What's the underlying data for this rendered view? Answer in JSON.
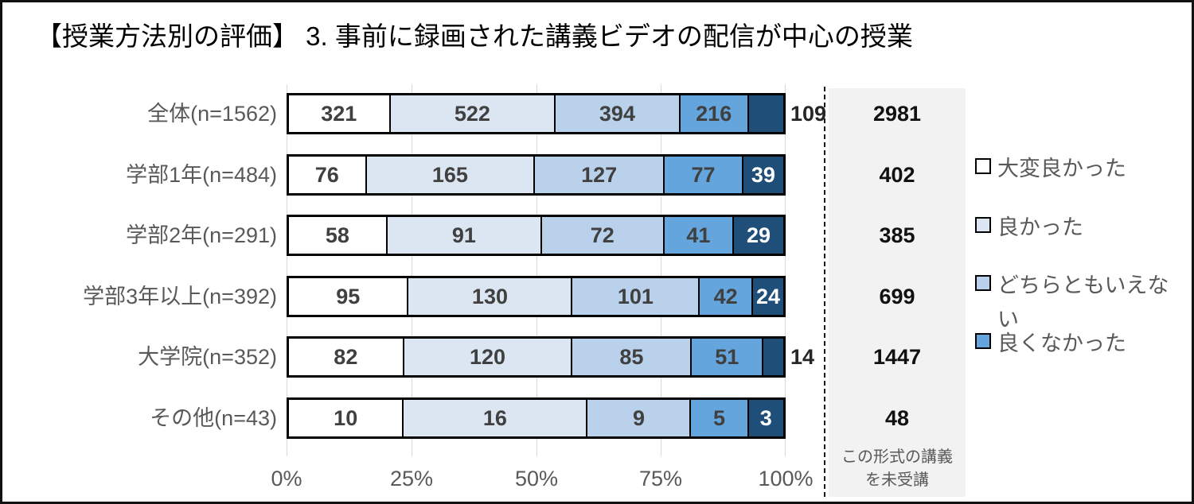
{
  "title": "【授業方法別の評価】 3. 事前に録画された講義ビデオの配信が中心の授業",
  "chart_data": {
    "type": "bar",
    "stacked": true,
    "orientation": "horizontal",
    "value_axis": "percent of row total (segments labeled with raw counts)",
    "categories": [
      "全体(n=1562)",
      "学部1年(n=484)",
      "学部2年(n=291)",
      "学部3年以上(n=392)",
      "大学院(n=352)",
      "その他(n=43)"
    ],
    "series": [
      {
        "name": "大変良かった",
        "color": "#ffffff",
        "values": [
          321,
          76,
          58,
          95,
          82,
          10
        ]
      },
      {
        "name": "良かった",
        "color": "#dce6f2",
        "values": [
          522,
          165,
          91,
          130,
          120,
          16
        ]
      },
      {
        "name": "どちらともいえない",
        "color": "#b9d1ea",
        "values": [
          394,
          127,
          72,
          101,
          85,
          9
        ]
      },
      {
        "name": "良くなかった",
        "color": "#63a5dc",
        "values": [
          216,
          77,
          41,
          42,
          51,
          5
        ]
      },
      {
        "name": "",
        "color": "#1f4e79",
        "values": [
          109,
          39,
          29,
          24,
          14,
          3
        ]
      }
    ],
    "x_axis": {
      "ticks": [
        "0%",
        "25%",
        "50%",
        "75%",
        "100%"
      ],
      "range": [
        0,
        100
      ],
      "gridlines": true
    },
    "not_attended": {
      "label": "この形式の講義\nを未受講",
      "values": [
        2981,
        402,
        385,
        699,
        1447,
        48
      ]
    },
    "legend_position": "right"
  },
  "legend": {
    "items": [
      {
        "label": "大変良かった",
        "color": "#ffffff"
      },
      {
        "label": "良かった",
        "color": "#dce6f2"
      },
      {
        "label": "どちらともいえない",
        "color": "#b9d1ea"
      },
      {
        "label": "良くなかった",
        "color": "#63a5dc"
      }
    ]
  },
  "colors": {
    "bar_border": "#000000",
    "gridline": "#d9d9d9",
    "category_text": "#595959",
    "axis_text": "#595959",
    "value_text": "#404040",
    "value_text_on_dark": "#ffffff",
    "gray_column_bg": "#f2f2f2",
    "gray_column_text": "#111111",
    "separator": "#1a1a1a"
  }
}
